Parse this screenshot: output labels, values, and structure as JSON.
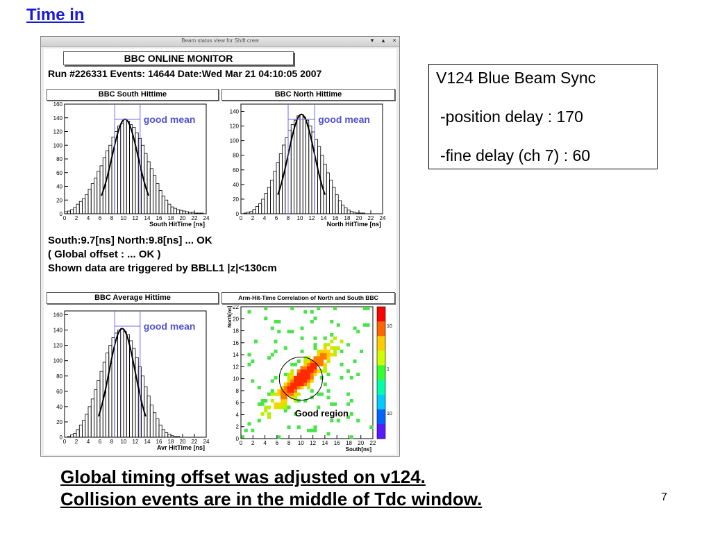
{
  "slide": {
    "title": "Time in",
    "caption_line1": "Global timing offset was  adjusted on v124.",
    "caption_line2": "Collision events are in the middle of Tdc window.",
    "page_number": "7"
  },
  "window": {
    "title": "Beam status view for Shift crew",
    "buttons": [
      "▾",
      "▴",
      "×"
    ]
  },
  "monitor": {
    "title": "BBC ONLINE MONITOR",
    "run_line": "Run #226331 Events: 14644 Date:Wed Mar 21 04:10:05 2007"
  },
  "panels": {
    "south": {
      "title": "BBC South Hittime",
      "xlabel": "South HitTime [ns]",
      "annotation": "good mean"
    },
    "north": {
      "title": "BBC North Hittime",
      "xlabel": "North HitTime [ns]",
      "annotation": "good mean"
    },
    "average": {
      "title": "BBC Average Hittime",
      "xlabel": "Avr HitTime [ns]",
      "annotation": "good mean"
    },
    "corr": {
      "title": "Arm-Hit-Time Correlation of North and South BBC",
      "xlabel": "South[ns]",
      "ylabel": "North[ns]",
      "annotation": "Good region",
      "colorbar_ticks": [
        "10",
        "1",
        "10"
      ]
    }
  },
  "status": {
    "line1": "South:9.7[ns]  North:9.8[ns]  ... OK",
    "line2": "( Global offset :  ... OK )",
    "line3": "Shown data are triggered by BBLL1 |z|<130cm"
  },
  "info": {
    "line1": "V124 Blue Beam Sync",
    "line2": "-position delay : 170",
    "line3": "-fine delay (ch 7) : 60"
  },
  "colors": {
    "title": "#1a1ad6",
    "annotation": "#5050d0",
    "marker_line": "#6a6af0"
  },
  "chart_data": [
    {
      "type": "bar",
      "title": "BBC South Hittime",
      "xlabel": "South HitTime [ns]",
      "x_ticks": [
        "0",
        "2",
        "4",
        "6",
        "8",
        "10",
        "12",
        "14",
        "16",
        "18",
        "20",
        "22",
        "24"
      ],
      "y_ticks": [
        "0",
        "20",
        "40",
        "60",
        "80",
        "100",
        "120",
        "140",
        "160"
      ],
      "xlim": [
        0,
        24
      ],
      "ylim": [
        0,
        160
      ],
      "good_mean_range": [
        8.5,
        12.8
      ],
      "x": [
        0,
        0.5,
        1,
        1.5,
        2,
        2.5,
        3,
        3.5,
        4,
        4.5,
        5,
        5.5,
        6,
        6.5,
        7,
        7.5,
        8,
        8.5,
        9,
        9.5,
        10,
        10.5,
        11,
        11.5,
        12,
        12.5,
        13,
        13.5,
        14,
        14.5,
        15,
        15.5,
        16,
        16.5,
        17,
        17.5,
        18,
        18.5,
        19,
        19.5,
        20,
        20.5,
        21,
        21.5,
        22,
        22.5,
        23,
        23.5
      ],
      "values": [
        3,
        4,
        6,
        9,
        14,
        18,
        22,
        28,
        36,
        44,
        52,
        62,
        70,
        82,
        92,
        100,
        112,
        120,
        128,
        132,
        138,
        135,
        130,
        126,
        118,
        110,
        100,
        88,
        76,
        66,
        56,
        44,
        34,
        26,
        20,
        14,
        10,
        8,
        6,
        5,
        4,
        3,
        2,
        2,
        1,
        1,
        1,
        0
      ]
    },
    {
      "type": "bar",
      "title": "BBC North Hittime",
      "xlabel": "North HitTime [ns]",
      "x_ticks": [
        "0",
        "2",
        "4",
        "6",
        "8",
        "10",
        "12",
        "14",
        "16",
        "18",
        "20",
        "22",
        "24"
      ],
      "y_ticks": [
        "0",
        "20",
        "40",
        "60",
        "80",
        "100",
        "120",
        "140"
      ],
      "xlim": [
        0,
        24
      ],
      "ylim": [
        0,
        150
      ],
      "good_mean_range": [
        8.0,
        12.5
      ],
      "x": [
        0,
        0.5,
        1,
        1.5,
        2,
        2.5,
        3,
        3.5,
        4,
        4.5,
        5,
        5.5,
        6,
        6.5,
        7,
        7.5,
        8,
        8.5,
        9,
        9.5,
        10,
        10.5,
        11,
        11.5,
        12,
        12.5,
        13,
        13.5,
        14,
        14.5,
        15,
        15.5,
        16,
        16.5,
        17,
        17.5,
        18,
        18.5,
        19,
        19.5,
        20,
        20.5,
        21,
        21.5,
        22,
        22.5,
        23,
        23.5
      ],
      "values": [
        0,
        1,
        2,
        3,
        6,
        10,
        14,
        20,
        28,
        36,
        46,
        58,
        70,
        82,
        94,
        104,
        114,
        122,
        128,
        134,
        136,
        132,
        128,
        120,
        112,
        102,
        92,
        80,
        68,
        56,
        46,
        36,
        26,
        18,
        12,
        8,
        5,
        3,
        2,
        1,
        1,
        1,
        0,
        0,
        0,
        0,
        0,
        0
      ]
    },
    {
      "type": "bar",
      "title": "BBC Average Hittime",
      "xlabel": "Avr HitTime [ns]",
      "x_ticks": [
        "0",
        "2",
        "4",
        "6",
        "8",
        "10",
        "12",
        "14",
        "16",
        "18",
        "20",
        "22",
        "24"
      ],
      "y_ticks": [
        "0",
        "20",
        "40",
        "60",
        "80",
        "100",
        "120",
        "140",
        "160"
      ],
      "xlim": [
        0,
        24
      ],
      "ylim": [
        0,
        165
      ],
      "good_mean_range": [
        8.5,
        12.8
      ],
      "x": [
        0,
        0.5,
        1,
        1.5,
        2,
        2.5,
        3,
        3.5,
        4,
        4.5,
        5,
        5.5,
        6,
        6.5,
        7,
        7.5,
        8,
        8.5,
        9,
        9.5,
        10,
        10.5,
        11,
        11.5,
        12,
        12.5,
        13,
        13.5,
        14,
        14.5,
        15,
        15.5,
        16,
        16.5,
        17,
        17.5,
        18,
        18.5,
        19,
        19.5,
        20,
        20.5,
        21,
        21.5,
        22,
        22.5,
        23,
        23.5
      ],
      "values": [
        0,
        1,
        3,
        5,
        10,
        16,
        22,
        30,
        40,
        50,
        62,
        74,
        86,
        98,
        110,
        120,
        130,
        136,
        140,
        142,
        138,
        134,
        126,
        116,
        104,
        92,
        80,
        66,
        54,
        42,
        32,
        24,
        16,
        10,
        6,
        4,
        2,
        1,
        1,
        0,
        0,
        0,
        0,
        0,
        0,
        0,
        0,
        0
      ]
    },
    {
      "type": "heatmap",
      "title": "Arm-Hit-Time Correlation of North and South BBC",
      "xlabel": "South[ns]",
      "ylabel": "North[ns]",
      "x_ticks": [
        "0",
        "2",
        "4",
        "6",
        "8",
        "10",
        "12",
        "14",
        "16",
        "18",
        "20",
        "22"
      ],
      "y_ticks": [
        "0",
        "2",
        "4",
        "6",
        "8",
        "10",
        "12",
        "14",
        "16",
        "18",
        "20",
        "22"
      ],
      "xlim": [
        0,
        22
      ],
      "ylim": [
        0,
        22
      ],
      "good_region_center": [
        10,
        10
      ],
      "good_region_radius": 3.6,
      "colorbar_scale": "log"
    }
  ]
}
